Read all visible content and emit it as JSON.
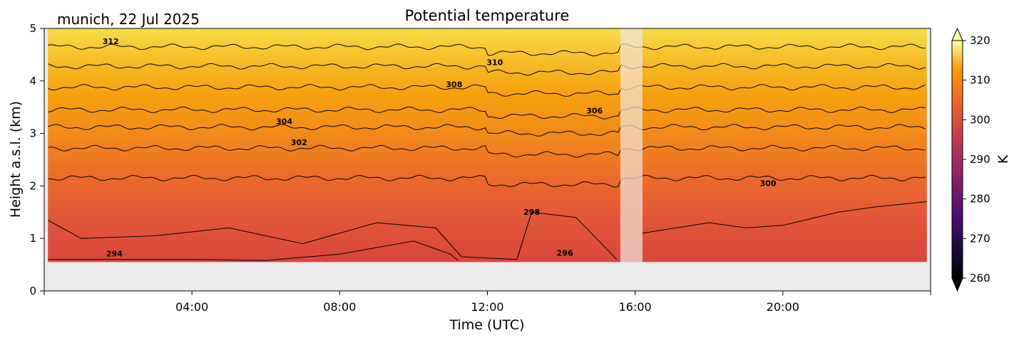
{
  "header": {
    "location_date": "munich, 22 Jul 2025"
  },
  "chart_data": {
    "type": "heatmap",
    "title": "Potential temperature",
    "xlabel": "Time (UTC)",
    "ylabel": "Height a.s.l. (km)",
    "x_range_hours": [
      0,
      24
    ],
    "xticks": [
      "04:00",
      "08:00",
      "12:00",
      "16:00",
      "20:00"
    ],
    "xtick_hours": [
      4,
      8,
      12,
      16,
      20
    ],
    "ylim": [
      0,
      5
    ],
    "yticks": [
      "0",
      "1",
      "2",
      "3",
      "4",
      "5"
    ],
    "data_bottom_km": 0.55,
    "missing_data_hours": [
      15.6,
      16.2
    ],
    "colorbar": {
      "label": "K",
      "min": 260,
      "max": 320,
      "ticks": [
        "260",
        "270",
        "280",
        "290",
        "300",
        "310",
        "320"
      ],
      "colormap": "inferno",
      "extend": "both"
    },
    "contour_levels_K": [
      294,
      296,
      298,
      300,
      302,
      304,
      306,
      308,
      310,
      312
    ],
    "contours": [
      {
        "level": 312,
        "height_km": 4.65
      },
      {
        "level": 310,
        "height_km": 4.28
      },
      {
        "level": 308,
        "height_km": 3.88
      },
      {
        "level": 306,
        "height_km": 3.45
      },
      {
        "level": 304,
        "height_km": 3.12
      },
      {
        "level": 302,
        "height_km": 2.72
      },
      {
        "level": 300,
        "height_km": 2.15
      }
    ],
    "contour_labels": [
      {
        "text": "312",
        "hour": 1.8,
        "km": 4.7
      },
      {
        "text": "310",
        "hour": 12.2,
        "km": 4.3
      },
      {
        "text": "308",
        "hour": 11.1,
        "km": 3.88
      },
      {
        "text": "306",
        "hour": 14.9,
        "km": 3.38
      },
      {
        "text": "304",
        "hour": 6.5,
        "km": 3.18
      },
      {
        "text": "302",
        "hour": 6.9,
        "km": 2.78
      },
      {
        "text": "300",
        "hour": 19.6,
        "km": 2.0
      },
      {
        "text": "298",
        "hour": 13.2,
        "km": 1.45
      },
      {
        "text": "296",
        "hour": 14.1,
        "km": 0.67
      },
      {
        "text": "294",
        "hour": 1.9,
        "km": 0.66
      }
    ]
  }
}
